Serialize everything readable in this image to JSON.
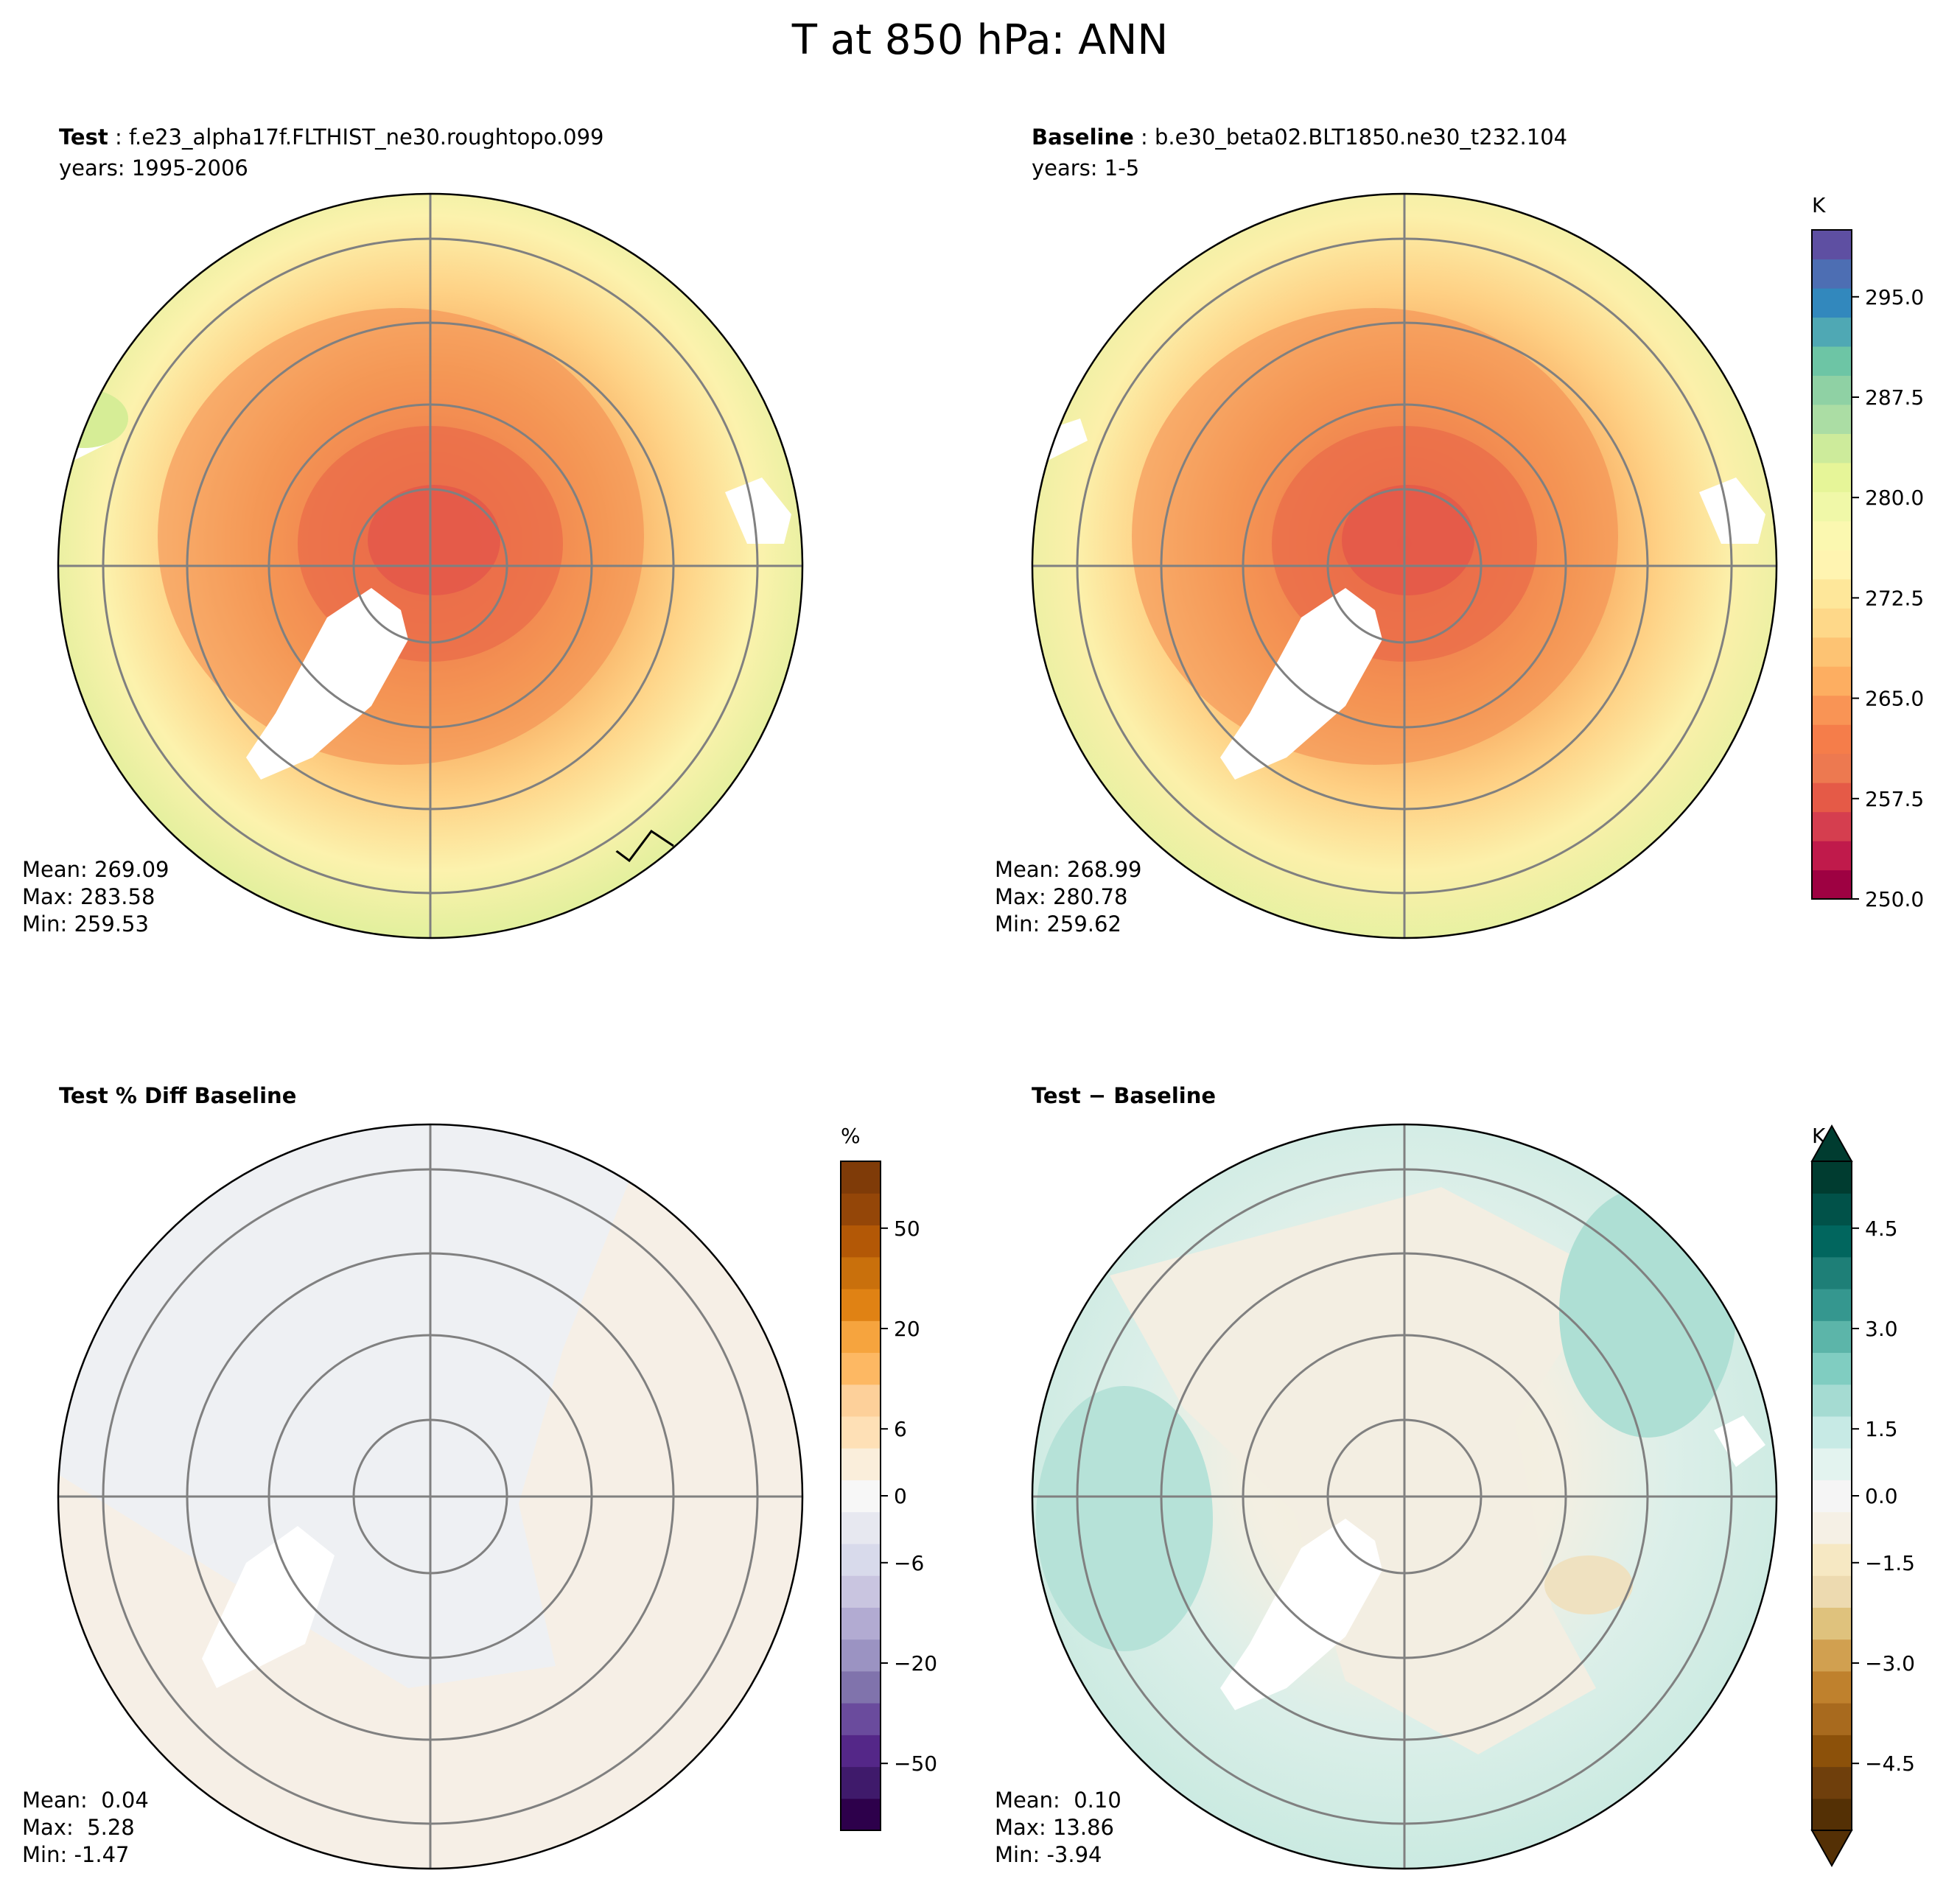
{
  "figure": {
    "title": "T at 850 hPa: ANN"
  },
  "panels": {
    "test": {
      "label_bold": "Test",
      "label_rest": " : f.e23_alpha17f.FLTHIST_ne30.roughtopo.099",
      "years": "years: 1995-2006",
      "mean": "Mean: 269.09",
      "max": "Max: 283.58",
      "min": "Min: 259.53"
    },
    "baseline": {
      "label_bold": "Baseline",
      "label_rest": " : b.e30_beta02.BLT1850.ne30_t232.104",
      "years": "years: 1-5",
      "mean": "Mean: 268.99",
      "max": "Max: 280.78",
      "min": "Min: 259.62"
    },
    "pctdiff": {
      "label_bold": "Test % Diff Baseline",
      "mean": "Mean:  0.04",
      "max": "Max:  5.28",
      "min": "Min: -1.47"
    },
    "diff": {
      "label_bold": "Test − Baseline",
      "mean": "Mean:  0.10",
      "max": "Max: 13.86",
      "min": "Min: -3.94"
    }
  },
  "colorbars": {
    "abs": {
      "unit": "K",
      "ticks": [
        "295.0",
        "287.5",
        "280.0",
        "272.5",
        "265.0",
        "257.5",
        "250.0"
      ]
    },
    "pct": {
      "unit": "%",
      "ticks": [
        "50",
        "20",
        "6",
        "0",
        "−6",
        "−20",
        "−50"
      ]
    },
    "diff": {
      "unit": "K",
      "ticks": [
        "4.5",
        "3.0",
        "1.5",
        "0.0",
        "−1.5",
        "−3.0",
        "−4.5"
      ]
    }
  },
  "chart_data": [
    {
      "type": "heatmap",
      "projection": "north polar stereographic",
      "title": "Test : f.e23_alpha17f.FLTHIST_ne30.roughtopo.099",
      "variable": "T at 850 hPa",
      "units": "K",
      "stats": {
        "mean": 269.09,
        "max": 283.58,
        "min": 259.53
      },
      "levels_range": [
        250.0,
        300.0
      ]
    },
    {
      "type": "heatmap",
      "projection": "north polar stereographic",
      "title": "Baseline : b.e30_beta02.BLT1850.ne30_t232.104",
      "variable": "T at 850 hPa",
      "units": "K",
      "stats": {
        "mean": 268.99,
        "max": 280.78,
        "min": 259.62
      },
      "levels_range": [
        250.0,
        300.0
      ]
    },
    {
      "type": "heatmap",
      "projection": "north polar stereographic",
      "title": "Test % Diff Baseline",
      "units": "%",
      "stats": {
        "mean": 0.04,
        "max": 5.28,
        "min": -1.47
      },
      "colorbar_ticks": [
        -50,
        -20,
        -6,
        0,
        6,
        20,
        50
      ]
    },
    {
      "type": "heatmap",
      "projection": "north polar stereographic",
      "title": "Test − Baseline",
      "units": "K",
      "stats": {
        "mean": 0.1,
        "max": 13.86,
        "min": -3.94
      },
      "colorbar_ticks": [
        -4.5,
        -3.0,
        -1.5,
        0.0,
        1.5,
        3.0,
        4.5
      ]
    }
  ]
}
